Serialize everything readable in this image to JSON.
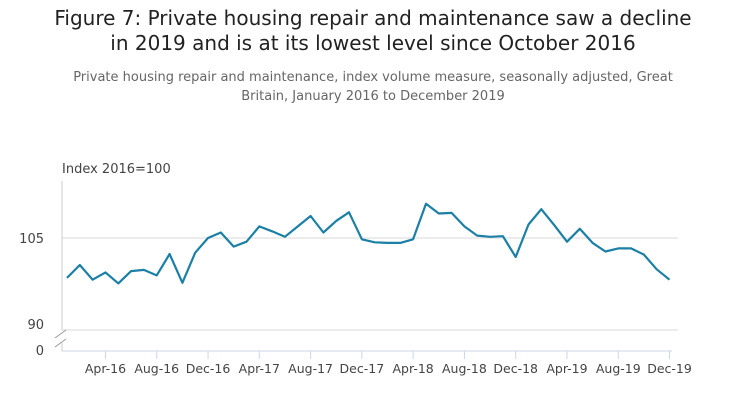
{
  "chart_data": {
    "type": "line",
    "title": "Figure 7: Private housing repair and maintenance saw a decline in 2019 and is at its lowest level since October 2016",
    "title_lines": [
      "Figure 7: Private housing repair and maintenance saw a decline",
      "in 2019 and is at its lowest level since October 2016"
    ],
    "subtitle_lines": [
      "Private housing repair and maintenance, index volume measure, seasonally adjusted, Great",
      "Britain, January 2016 to December 2019"
    ],
    "ylabel": "Index 2016=100",
    "ylim": [
      90,
      114.3
    ],
    "y_ticks": [
      "105",
      "90",
      "0"
    ],
    "axis_break": true,
    "x_tick_labels": [
      "Apr-16",
      "Aug-16",
      "Dec-16",
      "Apr-17",
      "Aug-17",
      "Dec-17",
      "Apr-18",
      "Aug-18",
      "Dec-18",
      "Apr-19",
      "Aug-19",
      "Dec-19"
    ],
    "x_tick_index": [
      3,
      7,
      11,
      15,
      19,
      23,
      27,
      31,
      35,
      39,
      43,
      47
    ],
    "grid": "horizontal",
    "color": "#1b7fa6",
    "x": [
      "Jan-16",
      "Feb-16",
      "Mar-16",
      "Apr-16",
      "May-16",
      "Jun-16",
      "Jul-16",
      "Aug-16",
      "Sep-16",
      "Oct-16",
      "Nov-16",
      "Dec-16",
      "Jan-17",
      "Feb-17",
      "Mar-17",
      "Apr-17",
      "May-17",
      "Jun-17",
      "Jul-17",
      "Aug-17",
      "Sep-17",
      "Oct-17",
      "Nov-17",
      "Dec-17",
      "Jan-18",
      "Feb-18",
      "Mar-18",
      "Apr-18",
      "May-18",
      "Jun-18",
      "Jul-18",
      "Aug-18",
      "Sep-18",
      "Oct-18",
      "Nov-18",
      "Dec-18",
      "Jan-19",
      "Feb-19",
      "Mar-19",
      "Apr-19",
      "May-19",
      "Jun-19",
      "Jul-19",
      "Aug-19",
      "Sep-19",
      "Oct-19",
      "Nov-19",
      "Dec-19"
    ],
    "values": [
      98.5,
      100.6,
      98.2,
      99.4,
      97.6,
      99.6,
      99.8,
      98.9,
      102.4,
      97.7,
      102.6,
      105.0,
      105.9,
      103.6,
      104.4,
      106.9,
      106.1,
      105.2,
      106.9,
      108.6,
      105.9,
      107.8,
      109.2,
      104.8,
      104.3,
      104.2,
      104.2,
      104.8,
      110.6,
      109.0,
      109.1,
      106.9,
      105.4,
      105.2,
      105.3,
      101.9,
      107.2,
      109.7,
      107.1,
      104.4,
      106.5,
      104.2,
      102.8,
      103.3,
      103.3,
      102.3,
      99.9,
      98.2
    ]
  }
}
